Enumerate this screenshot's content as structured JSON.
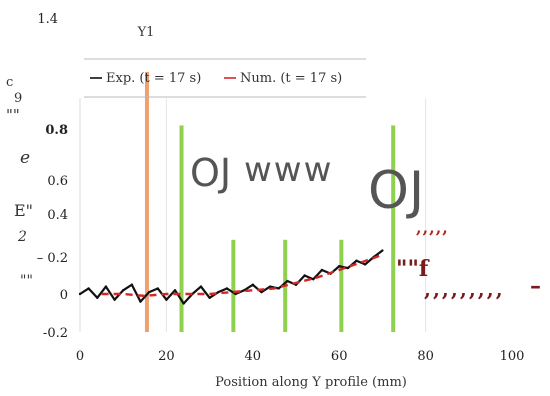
{
  "chart_data": {
    "type": "line",
    "title": "Y1",
    "xlabel": "Position along Y profile (mm)",
    "ylabel_fragments": [
      "c",
      "9",
      "\"\"",
      "e",
      "E\"",
      "2",
      "\"\""
    ],
    "xlim": [
      0,
      100
    ],
    "ylim": [
      -0.2,
      1.4
    ],
    "x_ticks": [
      "0",
      "20",
      "40",
      "60",
      "80",
      "100"
    ],
    "y_ticks": [
      {
        "value": 1.4,
        "label": "1.4"
      },
      {
        "value": 0.8,
        "label": "0.8"
      },
      {
        "value": 0.6,
        "label": "0.6"
      },
      {
        "value": 0.4,
        "label": "0.4"
      },
      {
        "value": 0.2,
        "label": "– 0.2"
      },
      {
        "value": 0.0,
        "label": "0"
      },
      {
        "value": -0.2,
        "label": "-0.2"
      }
    ],
    "legend": {
      "placement": "top",
      "entries": [
        {
          "name": "Exp. (t = 17 s)",
          "color": "#111111",
          "style": "solid"
        },
        {
          "name": "Num. (t = 17 s)",
          "color": "#d62728",
          "style": "dashed"
        }
      ]
    },
    "series": [
      {
        "name": "Exp. (t = 17 s)",
        "color": "#111111",
        "x": [
          0,
          2,
          4,
          6,
          8,
          10,
          12,
          14,
          16,
          18,
          20,
          22,
          24,
          26,
          28,
          30,
          32,
          34,
          36,
          38,
          40,
          42,
          44,
          46,
          48,
          50,
          52,
          54,
          56,
          58,
          60,
          62,
          64,
          66,
          68,
          70
        ],
        "y": [
          0.0,
          0.03,
          -0.02,
          0.04,
          -0.03,
          0.02,
          0.05,
          -0.04,
          0.01,
          0.03,
          -0.03,
          0.02,
          -0.05,
          0.0,
          0.04,
          -0.02,
          0.01,
          0.03,
          0.0,
          0.02,
          0.05,
          0.01,
          0.04,
          0.03,
          0.07,
          0.05,
          0.1,
          0.08,
          0.13,
          0.11,
          0.15,
          0.14,
          0.18,
          0.16,
          0.2,
          0.23
        ]
      },
      {
        "name": "Num. (t = 17 s)",
        "color": "#d62728",
        "x": [
          5,
          10,
          15,
          20,
          25,
          30,
          35,
          40,
          45,
          50,
          55,
          60,
          65,
          70
        ],
        "y": [
          0.0,
          0.0,
          -0.01,
          0.0,
          0.0,
          0.0,
          0.01,
          0.02,
          0.03,
          0.06,
          0.09,
          0.13,
          0.17,
          0.21
        ]
      }
    ],
    "vertical_markers": [
      {
        "x": 15.5,
        "color": "#f0a070",
        "y_top": 1.12
      },
      {
        "x": 23.5,
        "color": "#8fd14f",
        "y_top": 0.82
      },
      {
        "x": 35.5,
        "color": "#8fd14f",
        "y_top": 0.28
      },
      {
        "x": 47.5,
        "color": "#8fd14f",
        "y_top": 0.28
      },
      {
        "x": 60.5,
        "color": "#8fd14f",
        "y_top": 0.28
      },
      {
        "x": 72.5,
        "color": "#8fd14f",
        "y_top": 0.82
      }
    ],
    "vertical_gridlines": [
      20,
      80
    ],
    "overlay_text": {
      "label_a": "OJ",
      "label_b": "www",
      "label_c": "OJ",
      "quotes_1": "\"\"",
      "quotes_2": "\"\"",
      "fragment_f": "\"\"f",
      "red_comma_1": ",,,,,",
      "red_comma_2": ",,,,,,,,,",
      "dash": "–"
    }
  }
}
